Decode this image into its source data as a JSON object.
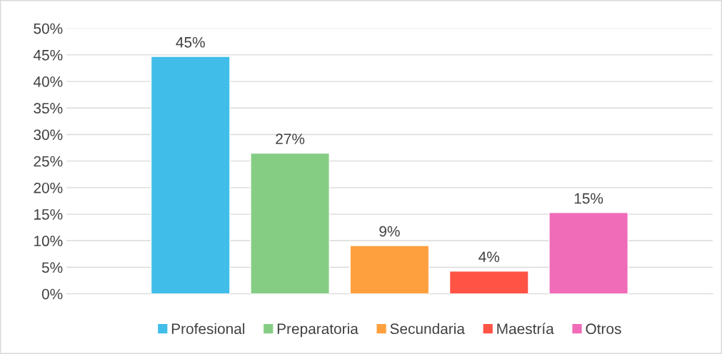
{
  "chart_data": {
    "type": "bar",
    "categories": [
      null
    ],
    "series": [
      {
        "name": "Profesional",
        "color": "#41bde9",
        "values": [
          44.7
        ],
        "value_labels": [
          "45%"
        ]
      },
      {
        "name": "Preparatoria",
        "color": "#86cd84",
        "values": [
          26.5
        ],
        "value_labels": [
          "27%"
        ]
      },
      {
        "name": "Secundaria",
        "color": "#ffa03f",
        "values": [
          9.1
        ],
        "value_labels": [
          "9%"
        ]
      },
      {
        "name": "Maestría",
        "color": "#ff5346",
        "values": [
          4.3
        ],
        "value_labels": [
          "4%"
        ]
      },
      {
        "name": "Otros",
        "color": "#f06bb8",
        "values": [
          15.3
        ],
        "value_labels": [
          "15%"
        ]
      }
    ],
    "ylim": [
      0,
      50
    ],
    "yticks": [
      {
        "value": 0,
        "label": "0%"
      },
      {
        "value": 5,
        "label": "5%"
      },
      {
        "value": 10,
        "label": "10%"
      },
      {
        "value": 15,
        "label": "15%"
      },
      {
        "value": 20,
        "label": "20%"
      },
      {
        "value": 25,
        "label": "25%"
      },
      {
        "value": 30,
        "label": "30%"
      },
      {
        "value": 35,
        "label": "35%"
      },
      {
        "value": 40,
        "label": "40%"
      },
      {
        "value": 45,
        "label": "45%"
      },
      {
        "value": 50,
        "label": "50%"
      }
    ],
    "grid": "y",
    "legend": "bottom"
  }
}
